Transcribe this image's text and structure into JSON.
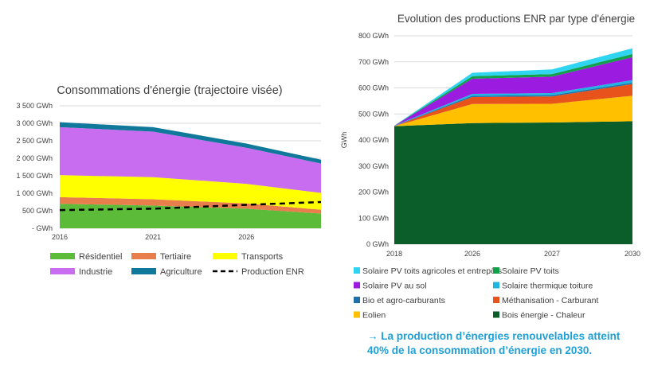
{
  "chart_data": [
    {
      "type": "area",
      "stacked": true,
      "title": "Consommations d'énergie (trajectoire visée)",
      "x": [
        2016,
        2021,
        2026,
        2030
      ],
      "x_ticks": [
        "2016",
        "2021",
        "2026"
      ],
      "y_ticks": [
        "3 500  GWh",
        "3 000  GWh",
        "2 500  GWh",
        "2 000  GWh",
        "1 500  GWh",
        "1 000  GWh",
        "500  GWh",
        "-  GWh"
      ],
      "ylim": [
        0,
        3500
      ],
      "grid": true,
      "legend_position": "bottom",
      "series": [
        {
          "name": "Résidentiel",
          "color": "#5dbb3a",
          "values": [
            700,
            650,
            560,
            420
          ]
        },
        {
          "name": "Tertiaire",
          "color": "#e87e4c",
          "values": [
            190,
            180,
            150,
            110
          ]
        },
        {
          "name": "Transports",
          "color": "#ffff00",
          "values": [
            630,
            630,
            560,
            480
          ]
        },
        {
          "name": "Industrie",
          "color": "#c86cf0",
          "values": [
            1370,
            1300,
            1030,
            840
          ]
        },
        {
          "name": "Agriculture",
          "color": "#10789a",
          "values": [
            140,
            130,
            120,
            110
          ]
        }
      ],
      "line_series": {
        "name": "Production ENR",
        "color": "#000000",
        "dashed": true,
        "values": [
          520,
          560,
          670,
          750
        ]
      }
    },
    {
      "type": "area",
      "stacked": true,
      "title": "Evolution des productions ENR par type d'énergie",
      "x": [
        "2018",
        "2026",
        "2027",
        "2030"
      ],
      "ylabel": "GWh",
      "y_ticks": [
        "800 GWh",
        "700 GWh",
        "600 GWh",
        "500 GWh",
        "400 GWh",
        "300 GWh",
        "200 GWh",
        "100 GWh",
        "0 GWh"
      ],
      "ylim": [
        0,
        800
      ],
      "grid": true,
      "legend_position": "bottom",
      "series": [
        {
          "name": "Bois énergie - Chaleur",
          "color": "#0b5d2a",
          "values": [
            453,
            465,
            467,
            472
          ]
        },
        {
          "name": "Eolien",
          "color": "#ffc000",
          "values": [
            0,
            73,
            72,
            98
          ]
        },
        {
          "name": "Méthanisation - Carburant",
          "color": "#e8531c",
          "values": [
            0,
            27,
            28,
            45
          ]
        },
        {
          "name": "Bio et agro-carburants",
          "color": "#1f6fa8",
          "values": [
            1,
            5,
            5,
            5
          ]
        },
        {
          "name": "Solaire thermique toiture",
          "color": "#1fb5e0",
          "values": [
            1,
            7,
            8,
            10
          ]
        },
        {
          "name": "Solaire PV au sol",
          "color": "#9b1ce0",
          "values": [
            0,
            58,
            63,
            88
          ]
        },
        {
          "name": "Solaire PV toits",
          "color": "#12a04a",
          "values": [
            0,
            10,
            10,
            12
          ]
        },
        {
          "name": "Solaire PV toits agricoles et entrepôts",
          "color": "#2ed4f0",
          "values": [
            0,
            13,
            18,
            22
          ]
        }
      ],
      "legend_order": [
        "Solaire PV toits agricoles et entrepôts",
        "Solaire PV toits",
        "Solaire PV au sol",
        "Solaire thermique toiture",
        "Bio et agro-carburants",
        "Méthanisation - Carburant",
        "Eolien",
        "Bois énergie - Chaleur"
      ]
    }
  ],
  "conclusion": {
    "arrow": "→",
    "text": "La production d’énergies renouvelables atteint 40% de la consommation d’énergie en 2030."
  }
}
